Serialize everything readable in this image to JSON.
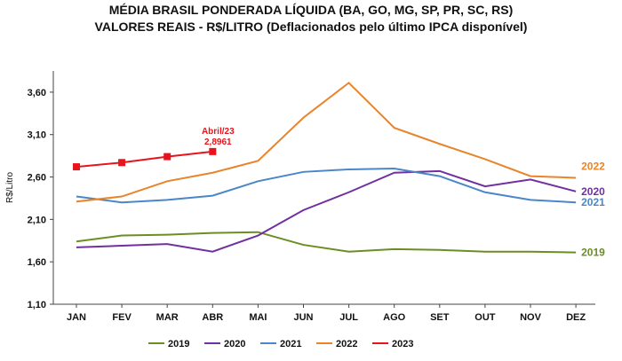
{
  "chart_data": {
    "type": "line",
    "title": "MÉDIA BRASIL PONDERADA LÍQUIDA (BA, GO, MG, SP, PR, SC, RS)",
    "subtitle": "VALORES REAIS - R$/LITRO (Deflacionados  pelo último IPCA disponível)",
    "ylabel": "R$/Litro",
    "xlabel": "",
    "ylim": [
      1.1,
      3.85
    ],
    "yticks": [
      "1,10",
      "1,60",
      "2,10",
      "2,60",
      "3,10",
      "3,60"
    ],
    "categories": [
      "JAN",
      "FEV",
      "MAR",
      "ABR",
      "MAI",
      "JUN",
      "JUL",
      "AGO",
      "SET",
      "OUT",
      "NOV",
      "DEZ"
    ],
    "grid": false,
    "legend": "bottom",
    "series": [
      {
        "name": "2019",
        "color": "#6b8e23",
        "values": [
          1.84,
          1.91,
          1.92,
          1.94,
          1.95,
          1.8,
          1.72,
          1.75,
          1.74,
          1.72,
          1.72,
          1.71
        ],
        "end_label": "2019"
      },
      {
        "name": "2020",
        "color": "#7030a0",
        "values": [
          1.77,
          1.79,
          1.81,
          1.72,
          1.91,
          2.21,
          2.42,
          2.65,
          2.67,
          2.49,
          2.57,
          2.43
        ],
        "end_label": "2020"
      },
      {
        "name": "2021",
        "color": "#4a86c8",
        "values": [
          2.37,
          2.3,
          2.33,
          2.38,
          2.55,
          2.66,
          2.69,
          2.7,
          2.61,
          2.42,
          2.33,
          2.3
        ],
        "end_label": "2021"
      },
      {
        "name": "2022",
        "color": "#e8842a",
        "values": [
          2.31,
          2.37,
          2.55,
          2.65,
          2.79,
          3.3,
          3.71,
          3.18,
          2.99,
          2.81,
          2.61,
          2.59
        ],
        "end_label": "2022"
      },
      {
        "name": "2023",
        "color": "#e8141b",
        "values": [
          2.72,
          2.77,
          2.84,
          2.9,
          null,
          null,
          null,
          null,
          null,
          null,
          null,
          null
        ],
        "markers": true
      }
    ],
    "annotation": {
      "line1": "Abril/23",
      "line2": "2,8961",
      "category": "ABR",
      "series": "2023"
    }
  }
}
